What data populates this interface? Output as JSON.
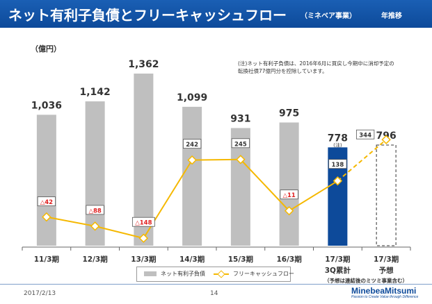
{
  "header": {
    "title": "ネット有利子負債とフリーキャッシュフロー",
    "segment": "（ミネベア事業）",
    "period_label": "年推移"
  },
  "unit_label": "（億円）",
  "note": [
    "(注)ネット有利子負債は、2016年6月に買戻し今期中に消却予定の",
    "転換社債77億円分を控除しています。"
  ],
  "chart_data": {
    "type": "bar+line",
    "categories": [
      "11/3期",
      "12/3期",
      "13/3期",
      "14/3期",
      "15/3期",
      "16/3期",
      "17/3期",
      "17/3期"
    ],
    "category_sub": [
      "",
      "",
      "",
      "",
      "",
      "",
      "3Q累計",
      "予想"
    ],
    "footnote_under_axis": "（予想は連結後のミツミ事業含む）",
    "series": [
      {
        "name": "ネット有利子負債",
        "type": "bar",
        "values": [
          1036,
          1142,
          1362,
          1099,
          931,
          975,
          778,
          796
        ],
        "labels": [
          "1,036",
          "1,142",
          "1,362",
          "1,099",
          "931",
          "975",
          "778",
          "796"
        ],
        "bar_styles": [
          "gray",
          "gray",
          "gray",
          "gray",
          "gray",
          "gray",
          "blue",
          "dashed"
        ],
        "colors": {
          "gray": "#bfbfbf",
          "blue": "#0d4a9a",
          "dashed": "#333333"
        }
      },
      {
        "name": "フリーキャッシュフロー",
        "type": "line",
        "values": [
          -42,
          -88,
          -148,
          242,
          245,
          -11,
          138,
          344
        ],
        "labels": [
          "△42",
          "△88",
          "△148",
          "242",
          "245",
          "△11",
          "138",
          "344"
        ],
        "color": "#f5b800",
        "negative_label_color": "#e02020"
      }
    ],
    "bar_note": "(注)",
    "bar_ylim": [
      0,
      1500
    ],
    "line_ylim": [
      -200,
      500
    ]
  },
  "legend": {
    "bar_label": "ネット有利子負債",
    "line_label": "フリーキャッシュフロー"
  },
  "footer": {
    "date": "2017/2/13",
    "page": "14",
    "logo_name": "MinebeaMitsumi",
    "logo_tagline": "Passion to Create Value through Difference"
  }
}
